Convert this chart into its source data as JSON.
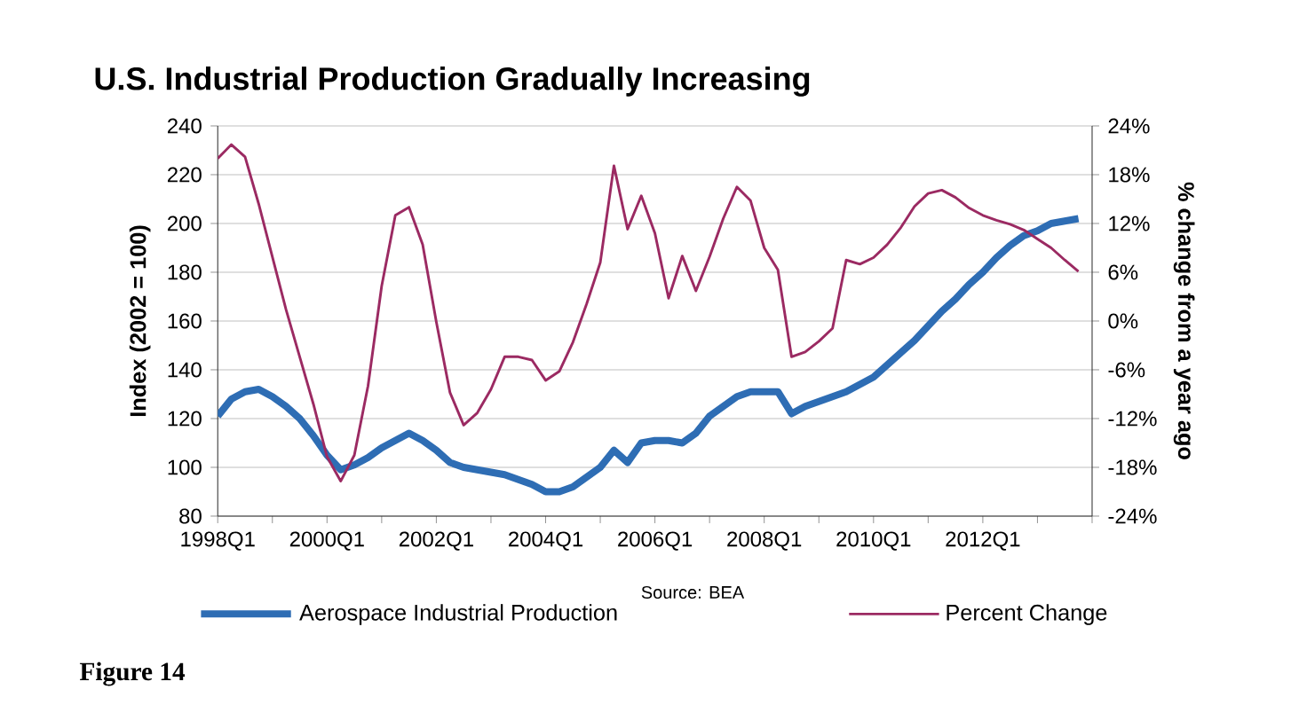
{
  "chart_data": {
    "type": "line",
    "title": "U.S. Industrial Production Gradually Increasing",
    "ylabel": "Index (2002 = 100)",
    "y2label": "% change from a year ago",
    "categories": [
      "1998Q1",
      null,
      null,
      null,
      null,
      null,
      null,
      null,
      "2000Q1",
      null,
      null,
      null,
      null,
      null,
      null,
      null,
      "2002Q1",
      null,
      null,
      null,
      null,
      null,
      null,
      null,
      "2004Q1",
      null,
      null,
      null,
      null,
      null,
      null,
      null,
      "2006Q1",
      null,
      null,
      null,
      null,
      null,
      null,
      null,
      "2008Q1",
      null,
      null,
      null,
      null,
      null,
      null,
      null,
      "2010Q1",
      null,
      null,
      null,
      null,
      null,
      null,
      null,
      "2012Q1",
      null,
      null,
      null,
      null,
      null,
      null,
      null
    ],
    "series": [
      {
        "name": "Aerospace Industrial Production",
        "color": "#2e6db4",
        "values": [
          121,
          128,
          131,
          132,
          129,
          125,
          120,
          113,
          105,
          99,
          101,
          104,
          108,
          111,
          114,
          111,
          107,
          102,
          100,
          99,
          98,
          97,
          95,
          93,
          90,
          90,
          92,
          96,
          100,
          107,
          102,
          110,
          111,
          111,
          110,
          114,
          121,
          125,
          129,
          131,
          131,
          131,
          122,
          125,
          127,
          129,
          131,
          134,
          137,
          142,
          147,
          152,
          158,
          164,
          169,
          175,
          180,
          186,
          191,
          195,
          197,
          200,
          201,
          202
        ]
      },
      {
        "name": "Percent Change",
        "color": "#9b2a62",
        "axis": "y2",
        "values": [
          20,
          21.7,
          20.2,
          14.4,
          7.9,
          1.4,
          -4.4,
          -10.2,
          -16.7,
          -19.7,
          -16.5,
          -8,
          4.3,
          13,
          14,
          9.4,
          -0.1,
          -8.8,
          -12.8,
          -11.3,
          -8.4,
          -4.4,
          -4.4,
          -4.8,
          -7.3,
          -6.2,
          -2.6,
          2.1,
          7.2,
          19.1,
          11.3,
          15.4,
          10.8,
          2.8,
          8,
          3.7,
          7.9,
          12.6,
          16.5,
          14.8,
          9,
          6.3,
          -4.4,
          -3.8,
          -2.5,
          -0.9,
          7.5,
          7,
          7.8,
          9.4,
          11.5,
          14.1,
          15.7,
          16.1,
          15.2,
          13.9,
          13,
          12.4,
          11.9,
          11.2,
          10.1,
          9,
          7.5,
          6.1
        ]
      }
    ],
    "ylim": [
      80,
      240
    ],
    "yticks": [
      80,
      100,
      120,
      140,
      160,
      180,
      200,
      220,
      240
    ],
    "y2lim": [
      -24,
      24
    ],
    "y2ticks": [
      {
        "value": -24,
        "label": "-24%"
      },
      {
        "value": -18,
        "label": "-18%"
      },
      {
        "value": -12,
        "label": "-12%"
      },
      {
        "value": -6,
        "label": "-6%"
      },
      {
        "value": 0,
        "label": "0%"
      },
      {
        "value": 6,
        "label": "6%"
      },
      {
        "value": 12,
        "label": "12%"
      },
      {
        "value": 18,
        "label": "18%"
      },
      {
        "value": 24,
        "label": "24%"
      }
    ],
    "grid": "y",
    "legend": "bottom",
    "marker": "none",
    "line_style": "solid",
    "annotations": [
      "Source: BEA",
      "Figure 14"
    ]
  }
}
